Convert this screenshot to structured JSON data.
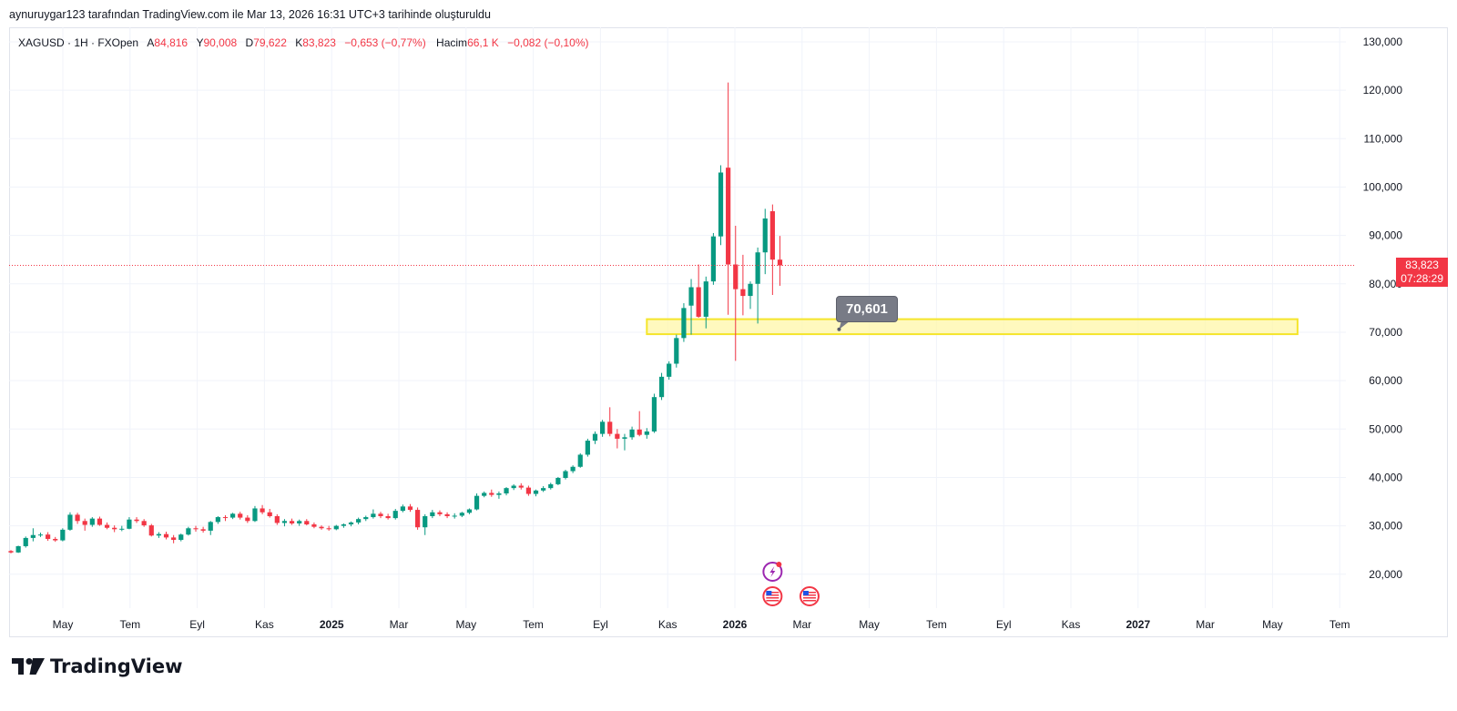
{
  "caption": "aynuruygar123 tarafından TradingView.com ile Mar 13, 2026 16:31 UTC+3 tarihinde oluşturuldu",
  "legend": {
    "symbol": "XAGUSD · 1H · FXOpen",
    "open_label": "A",
    "open": "84,816",
    "high_label": "Y",
    "high": "90,008",
    "low_label": "D",
    "low": "79,622",
    "close_label": "K",
    "close": "83,823",
    "change": "−0,653 (−0,77%)",
    "volume_label": "Hacim",
    "volume": "66,1 K",
    "volume_change": "−0,082 (−0,10%)"
  },
  "last_price": {
    "price": "83,823",
    "countdown": "07:28:29"
  },
  "annotation": {
    "label": "70,601"
  },
  "brand": {
    "name": "TradingView"
  },
  "colors": {
    "up": "#089981",
    "down": "#f23645",
    "zone_fill": "#fff7a8",
    "zone_border": "#f5e52b"
  },
  "icons": [
    "lightning-event-icon",
    "us-flag-event-icon",
    "us-flag-event-icon"
  ],
  "chart_data": {
    "type": "candlestick",
    "ylim": [
      13000,
      133000
    ],
    "y_ticks": [
      20000,
      30000,
      40000,
      50000,
      60000,
      70000,
      80000,
      90000,
      100000,
      110000,
      120000,
      130000
    ],
    "y_tick_labels": [
      "20,000",
      "30,000",
      "40,000",
      "50,000",
      "60,000",
      "70,000",
      "80,000",
      "90,000",
      "100,000",
      "110,000",
      "120,000",
      "130,000"
    ],
    "x_labels": [
      "May",
      "Tem",
      "Eyl",
      "Kas",
      "2025",
      "Mar",
      "May",
      "Tem",
      "Eyl",
      "Kas",
      "2026",
      "Mar",
      "May",
      "Tem",
      "Eyl",
      "Kas",
      "2027",
      "Mar",
      "May",
      "Tem"
    ],
    "x_labels_bold": [
      false,
      false,
      false,
      false,
      true,
      false,
      false,
      false,
      false,
      false,
      true,
      false,
      false,
      false,
      false,
      false,
      true,
      false,
      false,
      false
    ],
    "price_line": 83823,
    "zone": {
      "from_index": 86,
      "to_index": 174,
      "low": 69600,
      "high": 72700
    },
    "annotation_value": 70601,
    "candles": [
      [
        24.8,
        25.0,
        24.3,
        24.5
      ],
      [
        24.5,
        25.9,
        24.4,
        25.8
      ],
      [
        25.8,
        27.8,
        25.5,
        27.5
      ],
      [
        27.5,
        29.5,
        26.8,
        28.1
      ],
      [
        28.1,
        28.6,
        27.7,
        28.2
      ],
      [
        28.2,
        28.7,
        26.9,
        27.3
      ],
      [
        27.3,
        27.7,
        26.7,
        27.0
      ],
      [
        27.0,
        29.5,
        26.8,
        29.2
      ],
      [
        29.2,
        32.8,
        29.0,
        32.3
      ],
      [
        32.3,
        32.7,
        30.4,
        31.0
      ],
      [
        31.0,
        31.5,
        29.0,
        30.2
      ],
      [
        30.2,
        31.8,
        29.8,
        31.5
      ],
      [
        31.5,
        31.9,
        30.0,
        30.2
      ],
      [
        30.2,
        30.7,
        29.3,
        29.6
      ],
      [
        29.6,
        30.1,
        28.7,
        29.3
      ],
      [
        29.3,
        30.0,
        28.9,
        29.4
      ],
      [
        29.4,
        31.8,
        29.3,
        31.3
      ],
      [
        31.3,
        31.8,
        30.6,
        31.0
      ],
      [
        31.0,
        31.4,
        29.8,
        30.1
      ],
      [
        30.1,
        30.4,
        27.8,
        28.0
      ],
      [
        28.0,
        28.7,
        27.5,
        28.3
      ],
      [
        28.3,
        28.8,
        27.2,
        27.6
      ],
      [
        27.6,
        28.1,
        26.4,
        27.1
      ],
      [
        27.1,
        28.4,
        26.8,
        28.2
      ],
      [
        28.2,
        29.8,
        28.0,
        29.5
      ],
      [
        29.5,
        30.0,
        28.8,
        29.3
      ],
      [
        29.3,
        29.8,
        28.6,
        29.0
      ],
      [
        29.0,
        31.0,
        28.1,
        30.8
      ],
      [
        30.8,
        32.0,
        30.4,
        31.8
      ],
      [
        31.8,
        32.2,
        31.0,
        31.7
      ],
      [
        31.7,
        32.7,
        31.4,
        32.5
      ],
      [
        32.5,
        32.9,
        31.3,
        31.7
      ],
      [
        31.7,
        32.2,
        30.6,
        31.0
      ],
      [
        31.0,
        34.1,
        30.8,
        33.6
      ],
      [
        33.6,
        34.3,
        32.4,
        32.8
      ],
      [
        32.8,
        33.5,
        31.7,
        32.0
      ],
      [
        32.0,
        32.4,
        30.2,
        30.6
      ],
      [
        30.6,
        31.4,
        29.9,
        31.0
      ],
      [
        31.0,
        31.5,
        30.2,
        30.5
      ],
      [
        30.5,
        31.3,
        30.0,
        31.0
      ],
      [
        31.0,
        31.4,
        30.1,
        30.3
      ],
      [
        30.3,
        30.7,
        29.5,
        29.8
      ],
      [
        29.8,
        30.1,
        29.2,
        29.5
      ],
      [
        29.5,
        30.0,
        29.0,
        29.3
      ],
      [
        29.3,
        30.2,
        29.1,
        30.0
      ],
      [
        30.0,
        30.5,
        29.6,
        30.3
      ],
      [
        30.3,
        30.9,
        29.9,
        30.7
      ],
      [
        30.7,
        31.7,
        30.3,
        31.4
      ],
      [
        31.4,
        32.1,
        31.0,
        31.8
      ],
      [
        31.8,
        33.4,
        31.5,
        32.5
      ],
      [
        32.5,
        32.9,
        31.6,
        32.0
      ],
      [
        32.0,
        32.5,
        31.3,
        31.6
      ],
      [
        31.6,
        33.5,
        31.3,
        33.1
      ],
      [
        33.1,
        34.4,
        32.8,
        34.0
      ],
      [
        34.0,
        34.5,
        32.9,
        33.3
      ],
      [
        33.3,
        33.8,
        29.2,
        29.7
      ],
      [
        29.7,
        32.4,
        28.1,
        32.0
      ],
      [
        32.0,
        33.3,
        31.6,
        32.8
      ],
      [
        32.8,
        33.2,
        32.0,
        32.4
      ],
      [
        32.4,
        32.8,
        31.6,
        32.0
      ],
      [
        32.0,
        32.6,
        31.5,
        32.1
      ],
      [
        32.1,
        32.9,
        31.8,
        32.7
      ],
      [
        32.7,
        33.6,
        32.4,
        33.4
      ],
      [
        33.4,
        36.7,
        33.2,
        36.2
      ],
      [
        36.2,
        37.1,
        35.9,
        36.8
      ],
      [
        36.8,
        37.5,
        36.0,
        36.4
      ],
      [
        36.4,
        37.1,
        35.6,
        36.7
      ],
      [
        36.7,
        38.0,
        36.3,
        37.8
      ],
      [
        37.8,
        38.6,
        37.4,
        38.3
      ],
      [
        38.3,
        38.8,
        37.5,
        37.9
      ],
      [
        37.9,
        38.3,
        36.2,
        36.6
      ],
      [
        36.6,
        37.5,
        36.1,
        37.3
      ],
      [
        37.3,
        38.2,
        37.0,
        37.8
      ],
      [
        37.8,
        38.9,
        37.5,
        38.6
      ],
      [
        38.6,
        40.1,
        38.4,
        39.9
      ],
      [
        39.9,
        41.6,
        39.6,
        41.3
      ],
      [
        41.3,
        42.5,
        40.9,
        42.2
      ],
      [
        42.2,
        45.0,
        42.0,
        44.7
      ],
      [
        44.7,
        48.0,
        44.3,
        47.6
      ],
      [
        47.6,
        49.5,
        46.9,
        49.0
      ],
      [
        49.0,
        51.9,
        48.4,
        51.5
      ],
      [
        51.5,
        54.5,
        48.5,
        49.0
      ],
      [
        49.0,
        50.0,
        46.0,
        48.0
      ],
      [
        48.0,
        49.0,
        45.6,
        48.3
      ],
      [
        48.3,
        50.5,
        47.8,
        49.9
      ],
      [
        49.9,
        53.7,
        48.5,
        48.8
      ],
      [
        48.8,
        50.2,
        48.0,
        49.5
      ],
      [
        49.5,
        57.3,
        49.2,
        56.6
      ],
      [
        56.6,
        61.6,
        56.0,
        60.8
      ],
      [
        60.8,
        64.0,
        60.2,
        63.5
      ],
      [
        63.5,
        69.5,
        62.7,
        68.8
      ],
      [
        68.8,
        76.0,
        68.0,
        75.0
      ],
      [
        75.5,
        81.0,
        69.5,
        79.3
      ],
      [
        79.3,
        84.0,
        73.0,
        73.2
      ],
      [
        73.2,
        81.5,
        70.8,
        80.5
      ],
      [
        80.5,
        90.5,
        79.8,
        89.8
      ],
      [
        89.8,
        104.5,
        88.0,
        103.0
      ],
      [
        104.0,
        121.6,
        73.6,
        84.0
      ],
      [
        84.0,
        92.0,
        64.1,
        78.9
      ],
      [
        78.9,
        86.0,
        73.5,
        77.5
      ],
      [
        77.5,
        80.5,
        74.8,
        80.0
      ],
      [
        80.0,
        87.5,
        71.8,
        86.5
      ],
      [
        86.5,
        95.5,
        82.0,
        93.5
      ],
      [
        95.0,
        96.4,
        77.7,
        85.0
      ],
      [
        85.0,
        89.9,
        79.6,
        83.8
      ]
    ]
  }
}
